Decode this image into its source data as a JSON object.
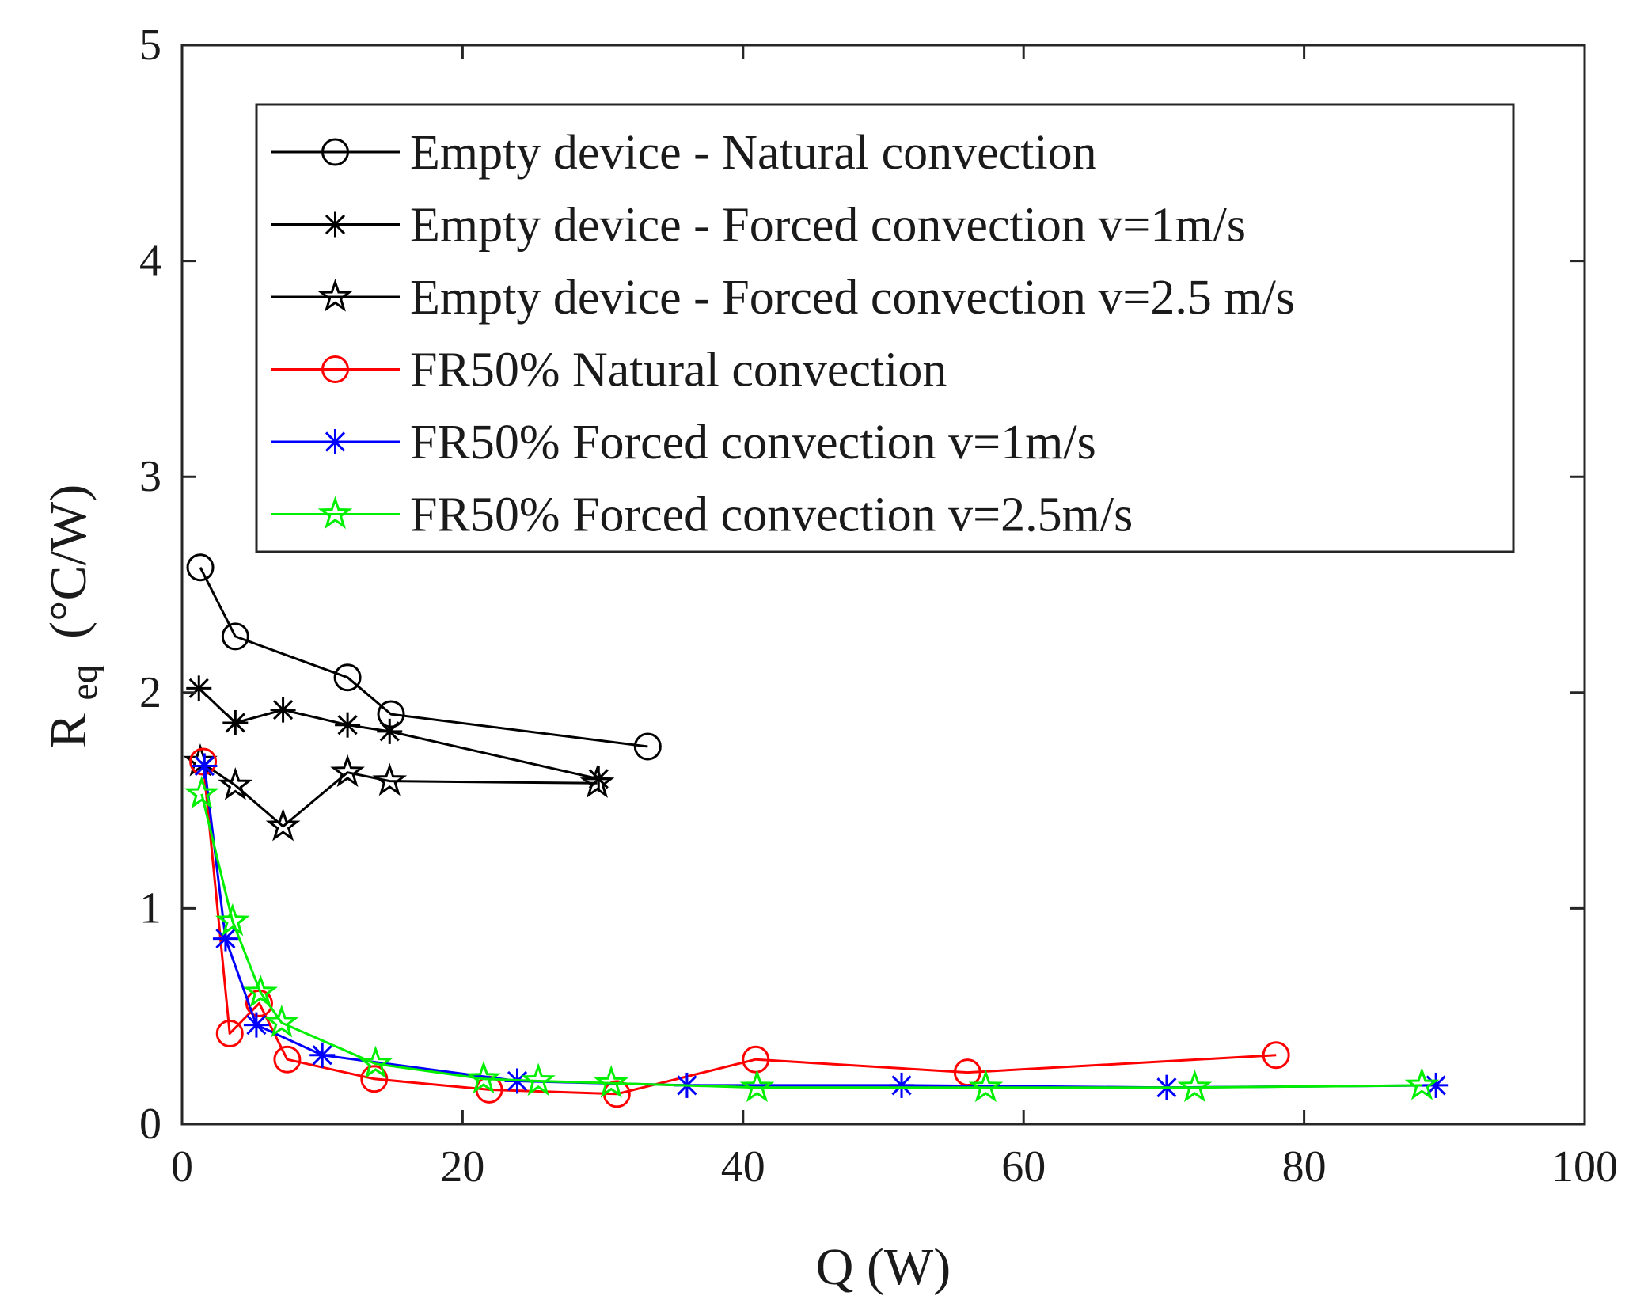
{
  "chart_data": {
    "type": "line",
    "xlabel": "Q (W)",
    "ylabel_main": "R",
    "ylabel_sub": "eq",
    "ylabel_units": "(°C/W)",
    "xlim": [
      0,
      100
    ],
    "ylim": [
      0,
      5
    ],
    "xticks": [
      0,
      20,
      40,
      60,
      80,
      100
    ],
    "yticks": [
      0,
      1,
      2,
      3,
      4,
      5
    ],
    "xtick_labels": [
      "0",
      "20",
      "40",
      "60",
      "80",
      "100"
    ],
    "ytick_labels": [
      "0",
      "1",
      "2",
      "3",
      "4",
      "5"
    ],
    "grid": false,
    "legend_position": "top",
    "series": [
      {
        "name": "Empty device - Natural convection",
        "color": "#000000",
        "marker": "circle",
        "x": [
          1.3,
          3.8,
          11.8,
          14.9,
          33.2
        ],
        "y": [
          2.58,
          2.26,
          2.07,
          1.9,
          1.75
        ]
      },
      {
        "name": "Empty device - Forced convection v=1m/s",
        "color": "#000000",
        "marker": "asterisk",
        "x": [
          1.2,
          3.8,
          7.2,
          11.8,
          14.8,
          29.7
        ],
        "y": [
          2.02,
          1.86,
          1.92,
          1.85,
          1.82,
          1.6
        ]
      },
      {
        "name": "Empty device - Forced convection v=2.5 m/s",
        "color": "#000000",
        "marker": "pentagram",
        "x": [
          1.3,
          3.8,
          7.2,
          11.8,
          14.8,
          29.6
        ],
        "y": [
          1.68,
          1.57,
          1.38,
          1.63,
          1.59,
          1.58
        ]
      },
      {
        "name": "FR50% Natural convection",
        "color": "#ff0000",
        "marker": "circle",
        "x": [
          1.5,
          3.4,
          5.5,
          7.5,
          13.7,
          21.9,
          31.0,
          40.9,
          56.0,
          78.0
        ],
        "y": [
          1.68,
          0.42,
          0.56,
          0.3,
          0.21,
          0.16,
          0.14,
          0.3,
          0.24,
          0.32
        ]
      },
      {
        "name": "FR50% Forced convection v=1m/s",
        "color": "#0000ff",
        "marker": "asterisk",
        "x": [
          1.6,
          3.1,
          5.3,
          10.0,
          23.9,
          36.0,
          51.3,
          70.2,
          89.4
        ],
        "y": [
          1.66,
          0.86,
          0.46,
          0.32,
          0.2,
          0.18,
          0.18,
          0.17,
          0.18
        ]
      },
      {
        "name": "FR50% Forced convection v=2.5m/s",
        "color": "#00ee00",
        "marker": "pentagram",
        "x": [
          1.4,
          3.6,
          5.6,
          7.1,
          13.8,
          21.5,
          25.4,
          30.6,
          41.0,
          57.3,
          72.2,
          88.4
        ],
        "y": [
          1.53,
          0.94,
          0.61,
          0.47,
          0.28,
          0.21,
          0.2,
          0.19,
          0.17,
          0.17,
          0.17,
          0.18
        ]
      }
    ]
  }
}
